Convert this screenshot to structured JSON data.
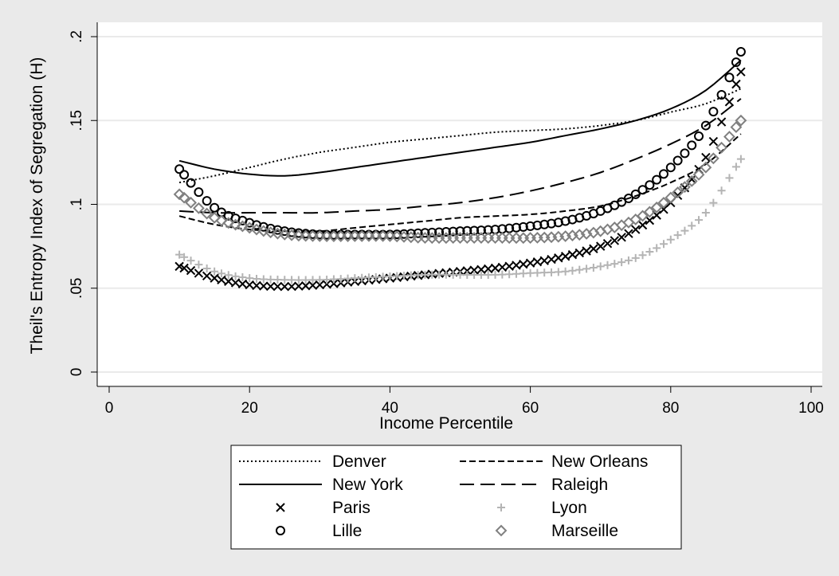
{
  "chart_data": {
    "type": "line",
    "title": "",
    "xlabel": "Income Percentile",
    "ylabel": "Theil's Entropy Index of Segregation (H)",
    "xlim": [
      0,
      100
    ],
    "ylim": [
      0,
      0.2
    ],
    "x_ticks": [
      0,
      20,
      40,
      60,
      80,
      100
    ],
    "x_tick_labels": [
      "0",
      "20",
      "40",
      "60",
      "80",
      "100"
    ],
    "y_ticks": [
      0,
      0.05,
      0.1,
      0.15,
      0.2
    ],
    "y_tick_labels": [
      "0",
      ".05",
      ".1",
      ".15",
      ".2"
    ],
    "grid": "horizontal",
    "legend_position": "bottom",
    "x": [
      10,
      15,
      20,
      25,
      30,
      35,
      40,
      45,
      50,
      55,
      60,
      65,
      70,
      75,
      80,
      85,
      90
    ],
    "series": [
      {
        "name": "Denver",
        "style": "dotted",
        "marker": "none",
        "color": "#000000",
        "values": [
          0.113,
          0.117,
          0.122,
          0.127,
          0.131,
          0.134,
          0.137,
          0.139,
          0.141,
          0.143,
          0.144,
          0.145,
          0.147,
          0.15,
          0.155,
          0.16,
          0.169
        ]
      },
      {
        "name": "New Orleans",
        "style": "dashed",
        "marker": "none",
        "color": "#000000",
        "values": [
          0.093,
          0.088,
          0.085,
          0.084,
          0.084,
          0.086,
          0.088,
          0.09,
          0.092,
          0.093,
          0.094,
          0.096,
          0.099,
          0.105,
          0.113,
          0.124,
          0.142
        ]
      },
      {
        "name": "New York",
        "style": "solid",
        "marker": "none",
        "color": "#000000",
        "values": [
          0.126,
          0.121,
          0.118,
          0.117,
          0.119,
          0.122,
          0.125,
          0.128,
          0.131,
          0.134,
          0.137,
          0.141,
          0.145,
          0.15,
          0.157,
          0.168,
          0.186
        ]
      },
      {
        "name": "Raleigh",
        "style": "longdash",
        "marker": "none",
        "color": "#000000",
        "values": [
          0.096,
          0.095,
          0.095,
          0.095,
          0.095,
          0.096,
          0.097,
          0.099,
          0.101,
          0.104,
          0.108,
          0.113,
          0.119,
          0.127,
          0.136,
          0.147,
          0.163
        ]
      },
      {
        "name": "Paris",
        "style": "none",
        "marker": "x",
        "color": "#000000",
        "values": [
          0.063,
          0.056,
          0.052,
          0.051,
          0.052,
          0.054,
          0.056,
          0.058,
          0.06,
          0.062,
          0.065,
          0.069,
          0.075,
          0.085,
          0.101,
          0.128,
          0.179
        ]
      },
      {
        "name": "Lyon",
        "style": "none",
        "marker": "plus",
        "color": "#b4b4b4",
        "values": [
          0.07,
          0.06,
          0.056,
          0.055,
          0.055,
          0.056,
          0.057,
          0.058,
          0.058,
          0.058,
          0.059,
          0.06,
          0.063,
          0.068,
          0.079,
          0.095,
          0.127
        ]
      },
      {
        "name": "Lille",
        "style": "none",
        "marker": "circle",
        "color": "#000000",
        "values": [
          0.121,
          0.098,
          0.089,
          0.084,
          0.082,
          0.082,
          0.082,
          0.083,
          0.084,
          0.085,
          0.087,
          0.09,
          0.096,
          0.106,
          0.122,
          0.147,
          0.191
        ]
      },
      {
        "name": "Marseille",
        "style": "none",
        "marker": "diamond",
        "color": "#808080",
        "values": [
          0.106,
          0.092,
          0.086,
          0.082,
          0.081,
          0.081,
          0.081,
          0.08,
          0.08,
          0.08,
          0.08,
          0.081,
          0.084,
          0.091,
          0.104,
          0.122,
          0.15
        ]
      }
    ]
  }
}
